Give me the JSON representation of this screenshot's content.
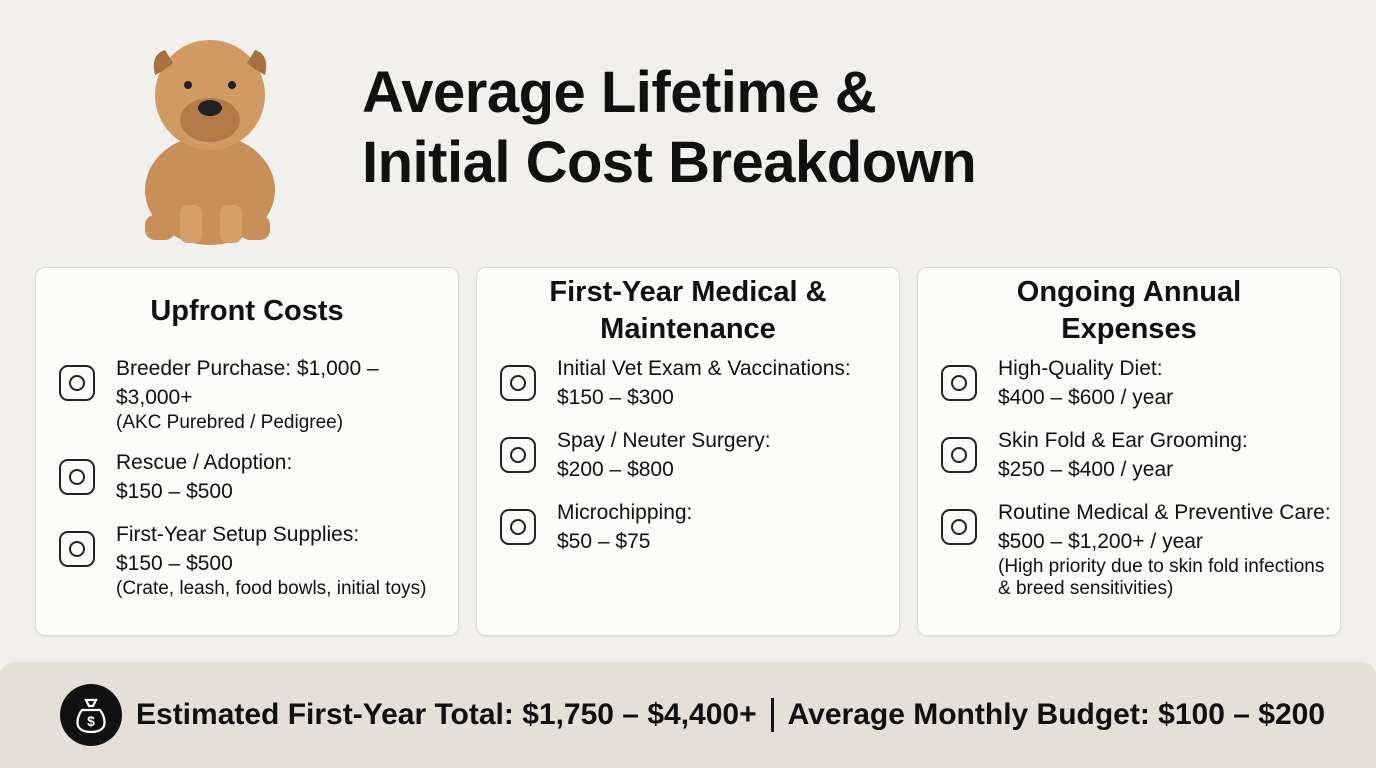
{
  "header": {
    "title_lines": [
      "Average Lifetime &",
      "Initial Cost Breakdown"
    ]
  },
  "cards": [
    {
      "title": "Upfront Costs",
      "items": [
        {
          "label": "Breeder Purchase: $1,000 – $3,000+",
          "note": "(AKC Purebred / Pedigree)"
        },
        {
          "label": "Rescue / Adoption:",
          "value": "$150 – $500"
        },
        {
          "label": "First-Year Setup Supplies:",
          "value": "$150 – $500",
          "note": "(Crate, leash, food bowls, initial toys)"
        }
      ]
    },
    {
      "title": "First-Year Medical & Maintenance",
      "items": [
        {
          "label": "Initial Vet Exam & Vaccinations:",
          "value": "$150 – $300"
        },
        {
          "label": "Spay / Neuter Surgery:",
          "value": "$200 – $800"
        },
        {
          "label": "Microchipping:",
          "value": "$50 – $75"
        }
      ]
    },
    {
      "title": "Ongoing Annual Expenses",
      "items": [
        {
          "label": "High-Quality Diet:",
          "value": "$400 – $600 / year"
        },
        {
          "label": "Skin Fold & Ear Grooming:",
          "value": "$250 – $400 / year"
        },
        {
          "label": "Routine Medical & Preventive Care:",
          "value": "$500 – $1,200+ / year",
          "note": "(High priority due to skin fold infections & breed sensitivities)"
        }
      ]
    }
  ],
  "footer": {
    "total": "Estimated First-Year Total: $1,750 – $4,400+",
    "monthly": "Average Monthly Budget: $100 – $200"
  }
}
